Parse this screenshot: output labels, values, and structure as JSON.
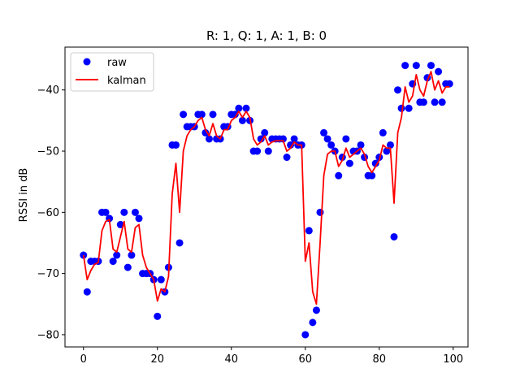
{
  "chart_data": {
    "type": "scatter",
    "title": "R: 1, Q: 1, A: 1, B: 0",
    "xlabel": "",
    "ylabel": "RSSI in dB",
    "xlim": [
      -5,
      104
    ],
    "ylim": [
      -82,
      -33
    ],
    "xticks": [
      0,
      20,
      40,
      60,
      80,
      100
    ],
    "yticks": [
      -80,
      -70,
      -60,
      -50,
      -40
    ],
    "grid": false,
    "legend_position": "top-left",
    "x": [
      0,
      1,
      2,
      3,
      4,
      5,
      6,
      7,
      8,
      9,
      10,
      11,
      12,
      13,
      14,
      15,
      16,
      17,
      18,
      19,
      20,
      21,
      22,
      23,
      24,
      25,
      26,
      27,
      28,
      29,
      30,
      31,
      32,
      33,
      34,
      35,
      36,
      37,
      38,
      39,
      40,
      41,
      42,
      43,
      44,
      45,
      46,
      47,
      48,
      49,
      50,
      51,
      52,
      53,
      54,
      55,
      56,
      57,
      58,
      59,
      60,
      61,
      62,
      63,
      64,
      65,
      66,
      67,
      68,
      69,
      70,
      71,
      72,
      73,
      74,
      75,
      76,
      77,
      78,
      79,
      80,
      81,
      82,
      83,
      84,
      85,
      86,
      87,
      88,
      89,
      90,
      91,
      92,
      93,
      94,
      95,
      96,
      97,
      98,
      99
    ],
    "series": [
      {
        "name": "raw",
        "style": "markers",
        "color": "#0000ff",
        "values": [
          -67,
          -73,
          -68,
          -68,
          -68,
          -60,
          -60,
          -61,
          -68,
          -67,
          -62,
          -60,
          -69,
          -67,
          -60,
          -61,
          -70,
          -70,
          -70,
          -71,
          -77,
          -71,
          -73,
          -69,
          -49,
          -49,
          -65,
          -44,
          -46,
          -46,
          -46,
          -44,
          -44,
          -47,
          -48,
          -44,
          -48,
          -48,
          -46,
          -46,
          -44,
          -44,
          -43,
          -45,
          -43,
          -45,
          -50,
          -50,
          -48,
          -47,
          -50,
          -48,
          -48,
          -48,
          -48,
          -51,
          -49,
          -48,
          -49,
          -49,
          -80,
          -63,
          -78,
          -76,
          -60,
          -47,
          -48,
          -49,
          -50,
          -54,
          -51,
          -48,
          -52,
          -50,
          -50,
          -49,
          -51,
          -54,
          -54,
          -52,
          -51,
          -47,
          -50,
          -49,
          -64,
          -40,
          -43,
          -36,
          -43,
          -39,
          -36,
          -42,
          -42,
          -38,
          -36,
          -42,
          -37,
          -42,
          -39,
          -39
        ]
      },
      {
        "name": "kalman",
        "style": "line",
        "color": "#ff0000",
        "values": [
          -67,
          -71,
          -69.5,
          -68.5,
          -68.2,
          -63,
          -61.5,
          -61.2,
          -66,
          -66.5,
          -64,
          -61.5,
          -66,
          -66.5,
          -62.5,
          -62,
          -67,
          -69,
          -70,
          -71,
          -74.5,
          -72.5,
          -73,
          -70.5,
          -57,
          -52,
          -60,
          -50,
          -47.5,
          -46.5,
          -46,
          -45,
          -44.5,
          -46.5,
          -47.5,
          -45.5,
          -47.5,
          -48,
          -46.5,
          -46.5,
          -45,
          -44.5,
          -43.5,
          -44.5,
          -43.5,
          -44.5,
          -48,
          -49,
          -48.5,
          -47.5,
          -49,
          -48.5,
          -48.3,
          -48.3,
          -48.3,
          -50,
          -49.5,
          -48.5,
          -49,
          -49,
          -68,
          -65,
          -73,
          -75,
          -65,
          -54,
          -50.5,
          -50,
          -50,
          -52.5,
          -51.5,
          -49.5,
          -51,
          -50.5,
          -50,
          -49.5,
          -50.5,
          -52.5,
          -53.5,
          -52.5,
          -51.5,
          -49,
          -49.5,
          -49.5,
          -58.5,
          -47,
          -44.5,
          -39.5,
          -42,
          -41,
          -37.5,
          -40,
          -41,
          -38.5,
          -37,
          -40,
          -38.5,
          -40.5,
          -39.5,
          -39.5
        ]
      }
    ]
  }
}
